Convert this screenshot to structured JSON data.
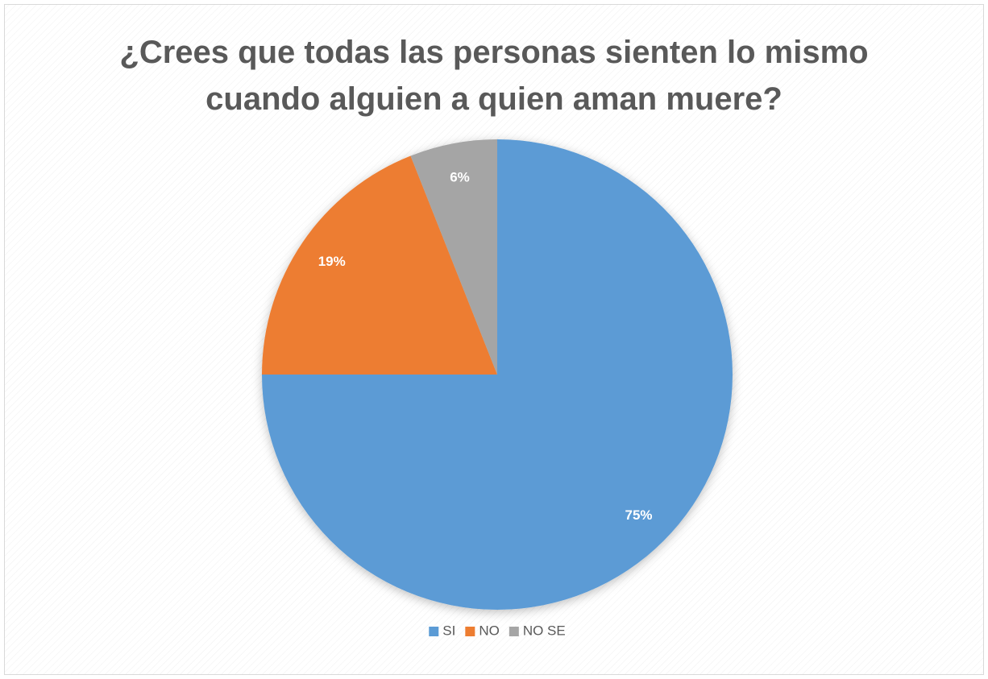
{
  "chart_data": {
    "type": "pie",
    "title": "¿Crees que todas las personas sienten lo mismo cuando alguien a quien aman muere?",
    "categories": [
      "SI",
      "NO",
      "NO SE"
    ],
    "values": [
      75,
      19,
      6
    ],
    "value_labels": [
      "75%",
      "19%",
      "6%"
    ],
    "colors": [
      "#5b9bd5",
      "#ed7d31",
      "#a5a5a5"
    ],
    "legend": "bottom"
  }
}
